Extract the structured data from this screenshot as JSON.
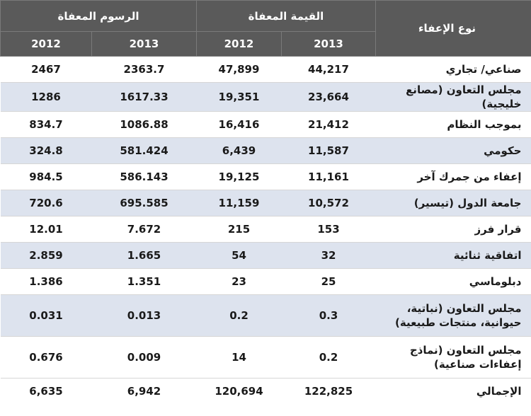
{
  "header": {
    "type_label": "نوع الإعفاء",
    "exempt_value_label": "القيمة المعفاة",
    "exempt_fees_label": "الرسوم المعفاة",
    "year_2013": "2013",
    "year_2012": "2012"
  },
  "rows": [
    {
      "type": "صناعي/ تجاري",
      "value_2013": "44,217",
      "value_2012": "47,899",
      "fees_2013": "2363.7",
      "fees_2012": "2467"
    },
    {
      "type": "مجلس التعاون (مصانع خليجية)",
      "value_2013": "23,664",
      "value_2012": "19,351",
      "fees_2013": "1617.33",
      "fees_2012": "1286"
    },
    {
      "type": "بموجب النظام",
      "value_2013": "21,412",
      "value_2012": "16,416",
      "fees_2013": "1086.88",
      "fees_2012": "834.7"
    },
    {
      "type": "حكومي",
      "value_2013": "11,587",
      "value_2012": "6,439",
      "fees_2013": "581.424",
      "fees_2012": "324.8"
    },
    {
      "type": "إعفاء من جمرك آخر",
      "value_2013": "11,161",
      "value_2012": "19,125",
      "fees_2013": "586.143",
      "fees_2012": "984.5"
    },
    {
      "type": "جامعة الدول (تيسير)",
      "value_2013": "10,572",
      "value_2012": "11,159",
      "fees_2013": "695.585",
      "fees_2012": "720.6"
    },
    {
      "type": "قرار فرز",
      "value_2013": "153",
      "value_2012": "215",
      "fees_2013": "7.672",
      "fees_2012": "12.01"
    },
    {
      "type": "اتفاقية ثنائية",
      "value_2013": "32",
      "value_2012": "54",
      "fees_2013": "1.665",
      "fees_2012": "2.859"
    },
    {
      "type": "دبلوماسي",
      "value_2013": "25",
      "value_2012": "23",
      "fees_2013": "1.351",
      "fees_2012": "1.386"
    },
    {
      "type": "مجلس التعاون (نباتية، حيوانية، منتجات طبيعية)",
      "value_2013": "0.3",
      "value_2012": "0.2",
      "fees_2013": "0.013",
      "fees_2012": "0.031"
    },
    {
      "type": "مجلس التعاون (نماذج إعفاءات صناعية)",
      "value_2013": "0.2",
      "value_2012": "14",
      "fees_2013": "0.009",
      "fees_2012": "0.676"
    }
  ],
  "total": {
    "type": "الإجمالي",
    "value_2013": "122,825",
    "value_2012": "120,694",
    "fees_2013": "6,942",
    "fees_2012": "6,635"
  }
}
